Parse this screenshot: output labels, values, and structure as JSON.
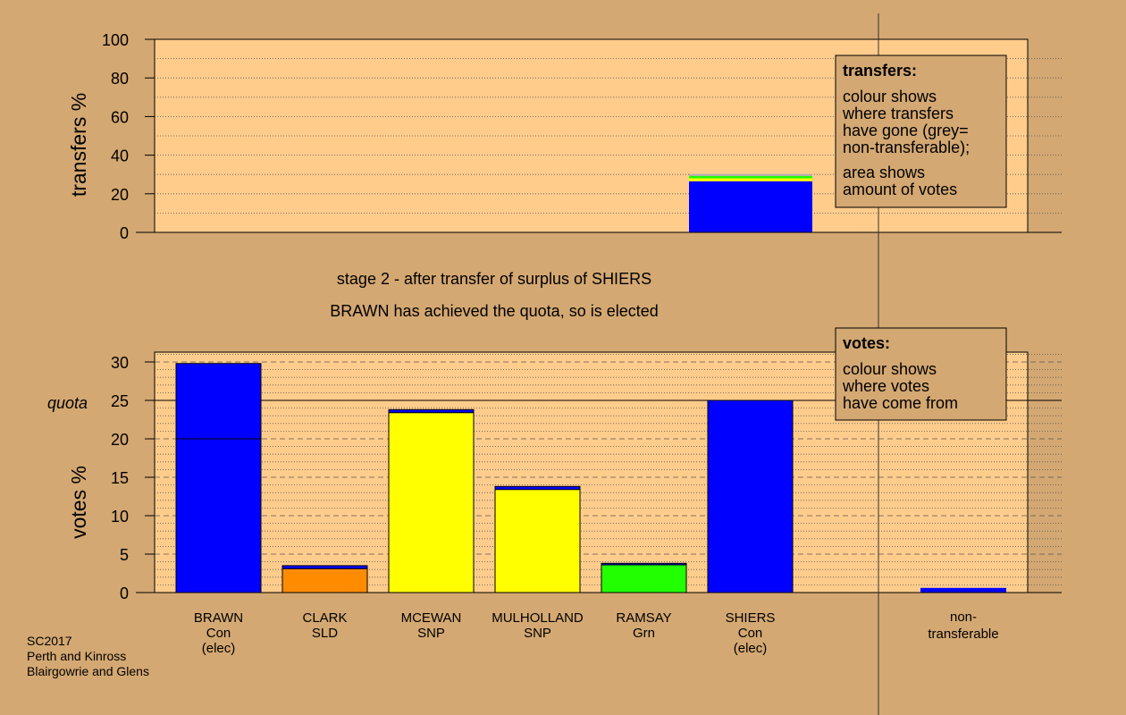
{
  "caption": {
    "stage_line": "stage 2 - after transfer of surplus of SHIERS",
    "result_line": "BRAWN has achieved the quota, so is elected"
  },
  "footer": {
    "lines": [
      "SC2017",
      "Perth and Kinross",
      "Blairgowrie and Glens"
    ]
  },
  "colors": {
    "background": "#d4a872",
    "plot_bg": "#ffcc8c",
    "Con": "#0000ff",
    "SLD": "#ff8c00",
    "SNP": "#ffff00",
    "Grn": "#22ff00",
    "grey": "#b0b0b0"
  },
  "chart_data": [
    {
      "type": "bar",
      "panel": "transfers",
      "ylabel": "transfers %",
      "ylim": [
        0,
        100
      ],
      "yticks": [
        0,
        20,
        40,
        60,
        80,
        100
      ],
      "grid": true,
      "stacks": [
        {
          "category": "SHIERS",
          "segments": [
            {
              "party": "Con",
              "value": 26.5
            },
            {
              "party": "SNP",
              "value": 1.5
            },
            {
              "party": "Grn",
              "value": 1.2
            },
            {
              "party": "grey",
              "value": 1.0
            }
          ]
        }
      ],
      "legend": {
        "title": "transfers:",
        "lines": [
          "colour shows",
          "where transfers",
          "have gone (grey=",
          "non-transferable);"
        ],
        "lines2": [
          "area shows",
          "amount of votes"
        ],
        "placement": "top-right"
      }
    },
    {
      "type": "bar",
      "panel": "votes",
      "ylabel": "votes %",
      "ylim": [
        0,
        30
      ],
      "yticks": [
        0,
        5,
        10,
        15,
        20,
        25,
        30
      ],
      "quota_value": 25,
      "quota_label": "quota",
      "grid": true,
      "candidates": [
        {
          "name": "BRAWN",
          "party": "Con",
          "note": "(elec)",
          "segments": [
            {
              "party": "Con",
              "value": 20.0
            },
            {
              "party": "Con",
              "value": 9.8
            }
          ]
        },
        {
          "name": "CLARK",
          "party": "SLD",
          "note": "",
          "segments": [
            {
              "party": "SLD",
              "value": 3.1
            },
            {
              "party": "Con",
              "value": 0.4
            }
          ]
        },
        {
          "name": "MCEWAN",
          "party": "SNP",
          "note": "",
          "segments": [
            {
              "party": "SNP",
              "value": 23.4
            },
            {
              "party": "Con",
              "value": 0.4
            }
          ]
        },
        {
          "name": "MULHOLLAND",
          "party": "SNP",
          "note": "",
          "segments": [
            {
              "party": "SNP",
              "value": 13.4
            },
            {
              "party": "Con",
              "value": 0.4
            }
          ]
        },
        {
          "name": "RAMSAY",
          "party": "Grn",
          "note": "",
          "segments": [
            {
              "party": "Grn",
              "value": 3.6
            },
            {
              "party": "Con",
              "value": 0.2
            }
          ]
        },
        {
          "name": "SHIERS",
          "party": "Con",
          "note": "(elec)",
          "segments": [
            {
              "party": "Con",
              "value": 25.0
            }
          ]
        }
      ],
      "nontransferable": {
        "label_lines": [
          "non-",
          "transferable"
        ],
        "segments": [
          {
            "party": "Con",
            "value": 0.6
          }
        ]
      },
      "legend": {
        "title": "votes:",
        "lines": [
          "colour shows",
          "where votes",
          "have come from"
        ],
        "placement": "top-right"
      }
    }
  ]
}
